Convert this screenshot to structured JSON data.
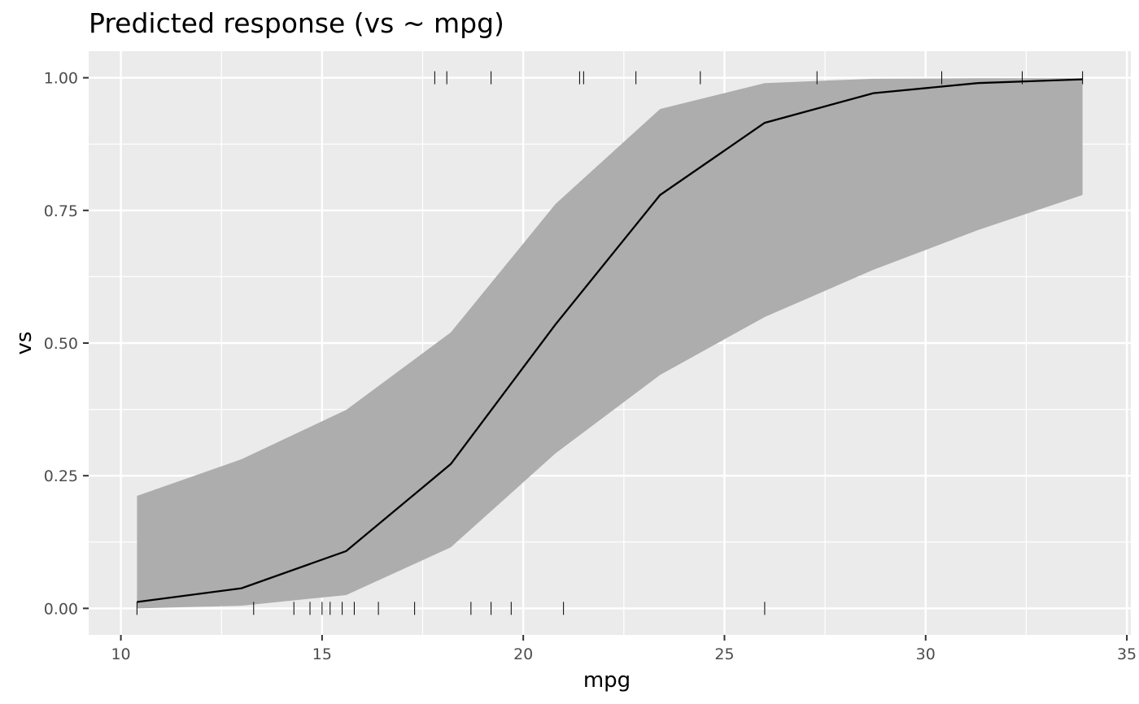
{
  "chart_data": {
    "type": "line",
    "title": "Predicted response (vs ~ mpg)",
    "xlabel": "mpg",
    "ylabel": "vs",
    "xlim": [
      9.2,
      35.1
    ],
    "ylim": [
      -0.05,
      1.05
    ],
    "x_ticks": [
      10,
      15,
      20,
      25,
      30,
      35
    ],
    "x_tick_labels": [
      "10",
      "15",
      "20",
      "25",
      "30",
      "35"
    ],
    "y_ticks": [
      0,
      0.25,
      0.5,
      0.75,
      1
    ],
    "y_tick_labels": [
      "0.00",
      "0.25",
      "0.50",
      "0.75",
      "1.00"
    ],
    "grid": true,
    "series": [
      {
        "x": [
          10.4,
          13.0,
          15.6,
          18.2,
          20.8,
          23.4,
          26.0,
          28.7,
          31.3,
          33.9
        ],
        "values": [
          0.012,
          0.038,
          0.108,
          0.272,
          0.535,
          0.779,
          0.915,
          0.971,
          0.99,
          0.997
        ],
        "lower": [
          0.0,
          0.005,
          0.025,
          0.115,
          0.292,
          0.44,
          0.549,
          0.638,
          0.713,
          0.779
        ],
        "upper": [
          0.212,
          0.281,
          0.374,
          0.52,
          0.762,
          0.941,
          0.99,
          0.998,
          0.999,
          0.999
        ]
      }
    ],
    "rug_bottom": [
      10.4,
      13.3,
      14.3,
      14.7,
      15.0,
      15.2,
      15.5,
      15.8,
      16.4,
      17.3,
      18.7,
      19.2,
      19.7,
      21.0,
      26.0
    ],
    "rug_top": [
      17.8,
      18.1,
      19.2,
      21.4,
      21.5,
      22.8,
      24.4,
      27.3,
      30.4,
      32.4,
      33.9
    ],
    "colors": {
      "panel": "#ebebeb",
      "grid": "#ffffff",
      "ribbon": "#adadad",
      "line": "#000000"
    }
  }
}
